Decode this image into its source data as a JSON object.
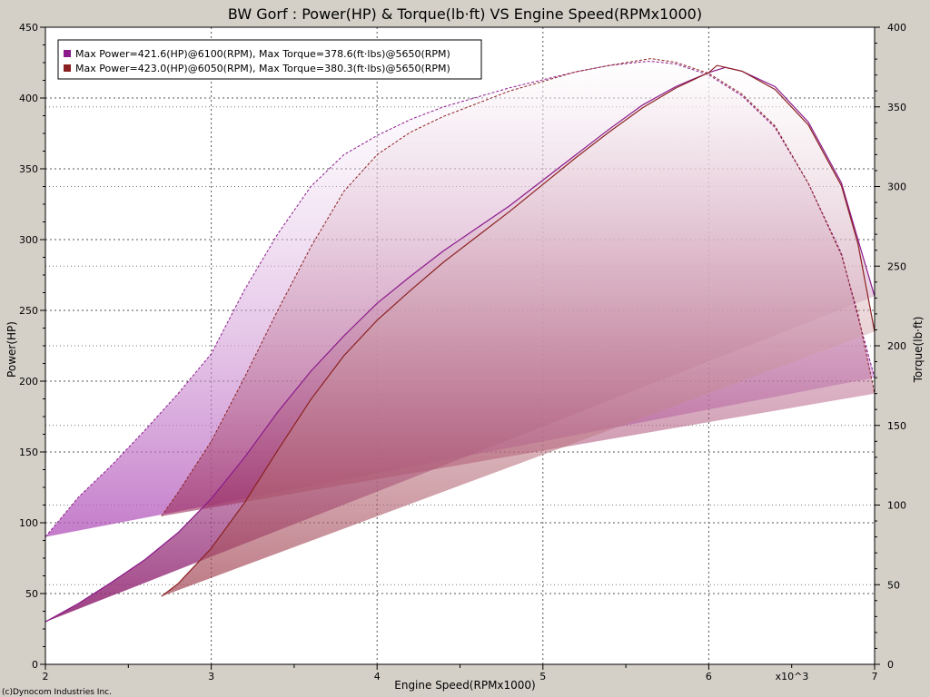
{
  "chart_data": {
    "type": "line",
    "title": "BW Gorf : Power(HP) & Torque(lb·ft) VS Engine Speed(RPMx1000)",
    "xlabel": "Engine Speed(RPMx1000)",
    "ylabel_left": "Power(HP)",
    "ylabel_right": "Torque(lb·ft)",
    "x_multiplier_label": "x10^3",
    "credit": "(c)Dynocom Industries Inc.",
    "xlim": [
      2,
      7
    ],
    "ylim_left": [
      0,
      450
    ],
    "ylim_right": [
      0,
      400
    ],
    "x_ticks": [
      "2",
      "3",
      "4",
      "5",
      "6",
      "7"
    ],
    "y_left_ticks": [
      "0",
      "50",
      "100",
      "150",
      "200",
      "250",
      "300",
      "350",
      "400",
      "450"
    ],
    "y_right_ticks": [
      "0",
      "50",
      "100",
      "150",
      "200",
      "250",
      "300",
      "350",
      "400"
    ],
    "grid": true,
    "legend_position": "top-left",
    "legend": [
      "Max Power=421.6(HP)@6100(RPM), Max Torque=378.6(ft·lbs)@5650(RPM)",
      "Max Power=423.0(HP)@6050(RPM), Max Torque=380.3(ft·lbs)@5650(RPM)"
    ],
    "series": [
      {
        "color": "#8b1a8b",
        "power": {
          "x": [
            2.0,
            2.2,
            2.4,
            2.6,
            2.8,
            3.0,
            3.2,
            3.4,
            3.6,
            3.8,
            4.0,
            4.2,
            4.4,
            4.6,
            4.8,
            5.0,
            5.2,
            5.4,
            5.6,
            5.8,
            6.0,
            6.1,
            6.2,
            6.4,
            6.6,
            6.8,
            6.9,
            7.0
          ],
          "y": [
            30,
            43,
            58,
            74,
            93,
            117,
            146,
            178,
            207,
            232,
            255,
            274,
            292,
            308,
            324,
            342,
            360,
            378,
            395,
            408,
            418,
            421.6,
            419,
            408,
            383,
            340,
            300,
            260
          ]
        },
        "torque": {
          "x": [
            2.0,
            2.2,
            2.4,
            2.6,
            2.8,
            3.0,
            3.2,
            3.4,
            3.6,
            3.8,
            4.0,
            4.2,
            4.4,
            4.6,
            4.8,
            5.0,
            5.2,
            5.4,
            5.6,
            5.65,
            5.8,
            6.0,
            6.2,
            6.4,
            6.6,
            6.8,
            6.9,
            7.0
          ],
          "y": [
            80,
            105,
            125,
            147,
            170,
            195,
            235,
            270,
            300,
            320,
            332,
            342,
            350,
            356,
            362,
            367,
            372,
            376,
            378.3,
            378.6,
            377,
            370,
            357,
            337,
            302,
            258,
            218,
            180
          ]
        }
      },
      {
        "color": "#8b2020",
        "power": {
          "x": [
            2.7,
            2.8,
            3.0,
            3.2,
            3.4,
            3.6,
            3.8,
            4.0,
            4.2,
            4.4,
            4.6,
            4.8,
            5.0,
            5.2,
            5.4,
            5.6,
            5.8,
            6.0,
            6.05,
            6.2,
            6.4,
            6.6,
            6.8,
            6.9,
            7.0
          ],
          "y": [
            48,
            57,
            82,
            114,
            151,
            187,
            218,
            243,
            264,
            284,
            302,
            320,
            339,
            358,
            376,
            393,
            407,
            418,
            423.0,
            419,
            406,
            381,
            338,
            297,
            235
          ]
        },
        "torque": {
          "x": [
            2.7,
            2.8,
            3.0,
            3.2,
            3.4,
            3.6,
            3.8,
            4.0,
            4.2,
            4.4,
            4.6,
            4.8,
            5.0,
            5.2,
            5.4,
            5.6,
            5.65,
            5.8,
            6.0,
            6.2,
            6.4,
            6.6,
            6.8,
            6.9,
            7.0
          ],
          "y": [
            93,
            108,
            140,
            180,
            222,
            262,
            297,
            320,
            334,
            344,
            352,
            360,
            366,
            372,
            376,
            379.5,
            380.3,
            378,
            371,
            358,
            338,
            302,
            257,
            220,
            170
          ]
        }
      }
    ]
  }
}
